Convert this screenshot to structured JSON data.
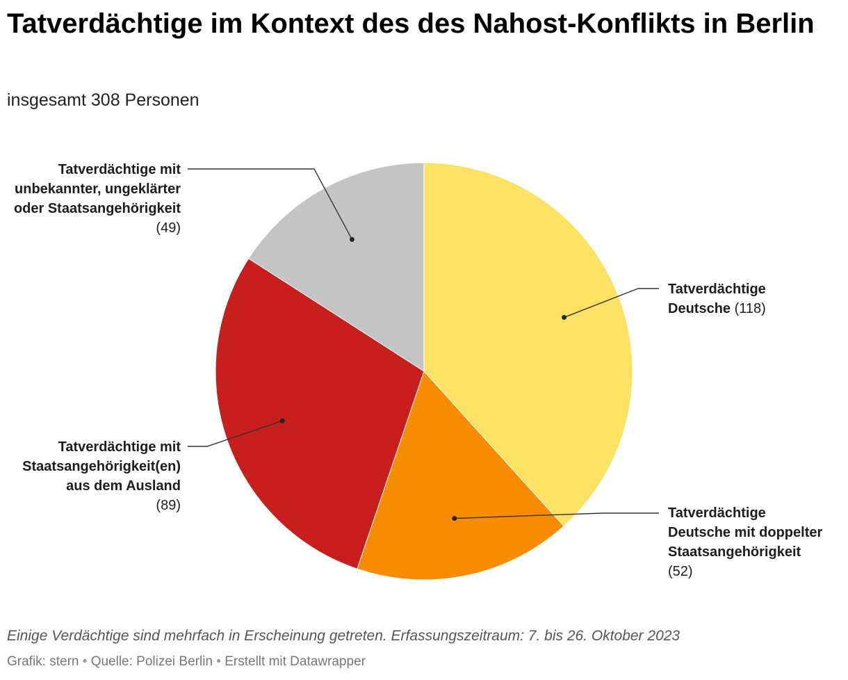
{
  "title": "Tatverdächtige im Kontext des des Nahost-Konflikts in Berlin",
  "subtitle": "insgesamt 308 Personen",
  "notes": "Einige Verdächtige sind mehrfach in Erscheinung getreten. Erfassungszeitraum: 7. bis 26. Oktober 2023",
  "credits": {
    "graphic": "Grafik: stern",
    "source": "Quelle: Polizei Berlin",
    "tool": "Erstellt mit Datawrapper",
    "separator": "•"
  },
  "chart_data": {
    "type": "pie",
    "start_angle_deg": 0,
    "direction": "clockwise",
    "slices": [
      {
        "label": "Tatverdächtige Deutsche",
        "value": 118,
        "value_label": "(118)",
        "color": "#fce263"
      },
      {
        "label": "Tatverdächtige Deutsche mit doppelter Staatsangehörigkeit",
        "value": 52,
        "value_label": "(52)",
        "color": "#f78c00"
      },
      {
        "label": "Tatverdächtige mit Staatsangehörigkeit(en) aus dem Ausland",
        "value": 89,
        "value_label": "(89)",
        "color": "#c81e1e"
      },
      {
        "label": "Tatverdächtige mit unbekannter, ungeklärter oder Staatsangehörigkeit",
        "value": 49,
        "value_label": "(49)",
        "color": "#c4c4c4"
      }
    ]
  }
}
